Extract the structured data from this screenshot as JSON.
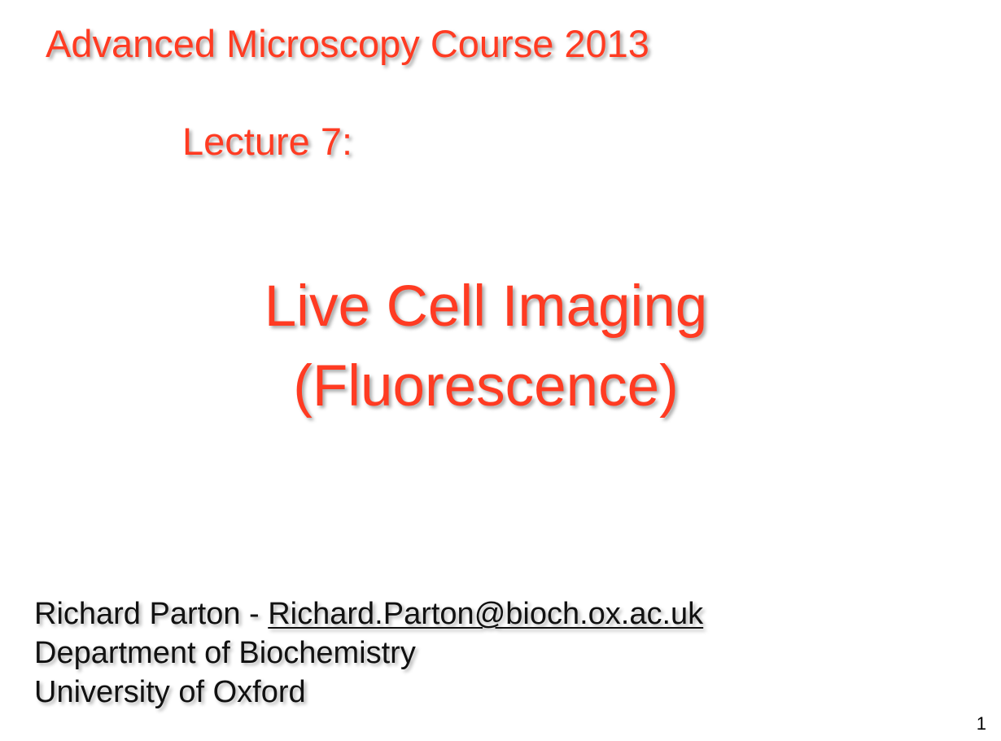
{
  "colors": {
    "title_red": "#ff3b22",
    "body_text": "#111111",
    "background": "#ffffff"
  },
  "slide": {
    "course_title": "Advanced Microscopy Course 2013",
    "lecture_label": "Lecture 7:",
    "main_title_line1": "Live Cell Imaging",
    "main_title_line2": "(Fluorescence)",
    "author": {
      "name_prefix": "Richard Parton - ",
      "email": "Richard.Parton@bioch.ox.ac.uk",
      "department": "Department of Biochemistry",
      "university": "University of Oxford"
    },
    "slide_number": "1"
  }
}
